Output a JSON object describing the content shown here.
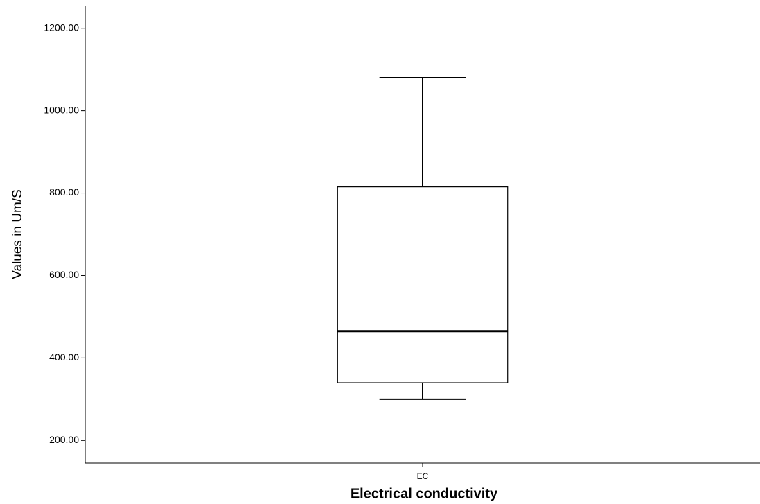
{
  "chart_data": {
    "type": "box",
    "x_label": "Electrical conductivity",
    "y_label": "Values in Um/S",
    "categories": [
      "EC"
    ],
    "values": [
      {
        "whislo": 300,
        "q1": 340,
        "median": 465,
        "q3": 815,
        "whishi": 1080
      }
    ],
    "ylim": [
      145,
      1255
    ],
    "yticks": [
      {
        "value": 200,
        "label": "200.00"
      },
      {
        "value": 400,
        "label": "400.00"
      },
      {
        "value": 600,
        "label": "600.00"
      },
      {
        "value": 800,
        "label": "800.00"
      },
      {
        "value": 1000,
        "label": "1000.00"
      },
      {
        "value": 1200,
        "label": "1200.00"
      }
    ],
    "grid": false
  }
}
